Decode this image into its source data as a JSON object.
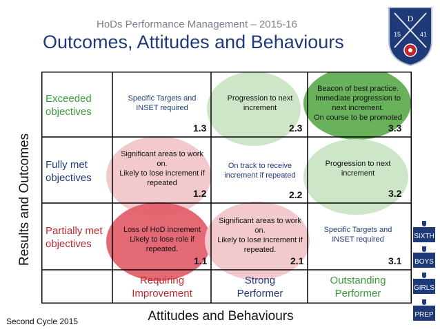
{
  "header": {
    "subtitle": "HoDs Performance Management – 2015-16",
    "title": "Outcomes, Attitudes and Behaviours"
  },
  "crest": {
    "letter": "D",
    "left_num": "15",
    "right_num": "41"
  },
  "axes": {
    "y_label": "Results and Outcomes",
    "x_label": "Attitudes and Behaviours"
  },
  "rows": [
    {
      "label_line1": "Exceeded",
      "label_line2": "objectives",
      "color": "#3a9a3a"
    },
    {
      "label_line1": "Fully met",
      "label_line2": "objectives",
      "color": "#1f3a78"
    },
    {
      "label_line1": "Partially met",
      "label_line2": "objectives",
      "color": "#c0282d"
    }
  ],
  "columns": [
    {
      "label_line1": "Requiring",
      "label_line2": "Improvement",
      "color": "#c0282d"
    },
    {
      "label_line1": "Strong",
      "label_line2": "Performer",
      "color": "#1f3a78"
    },
    {
      "label_line1": "Outstanding",
      "label_line2": "Performer",
      "color": "#3a9a3a"
    }
  ],
  "cells": {
    "c13": {
      "num": "1.3",
      "lines": [
        "Specific Targets and",
        "INSET required"
      ]
    },
    "c23": {
      "num": "2.3",
      "lines": [
        "Progression to next",
        "increment"
      ]
    },
    "c33": {
      "num": "3.3",
      "lines": [
        "Beacon of best practice.",
        "Immediate progression to",
        "next increment.",
        "On course to be promoted"
      ]
    },
    "c12": {
      "num": "1.2",
      "lines": [
        "Significant areas to work",
        "on.",
        "Likely to lose increment if",
        "repeated"
      ]
    },
    "c22": {
      "num": "2.2",
      "lines": [
        "On track to receive",
        "increment if repeated"
      ]
    },
    "c32": {
      "num": "3.2",
      "lines": [
        "Progression to next",
        "increment"
      ]
    },
    "c11": {
      "num": "1.1",
      "lines": [
        "Loss of HoD increment",
        "Likely to lose role if",
        "repeated."
      ]
    },
    "c21": {
      "num": "2.1",
      "lines": [
        "Significant areas to work",
        "on.",
        "Likely to lose increment if",
        "repeated."
      ]
    },
    "c31": {
      "num": "3.1",
      "lines": [
        "Specific Targets and",
        "INSET required"
      ]
    }
  },
  "footer": {
    "cycle": "Second Cycle 2015"
  },
  "badges": [
    "SIXTH",
    "BOYS",
    "GIRLS",
    "PREP"
  ],
  "colors": {
    "navy": "#1f3a78",
    "green": "#3a9a3a",
    "red": "#c0282d",
    "light_red": "#f2c9cc",
    "mid_red": "#e05a66",
    "light_green": "#cde6c8",
    "dark_green": "#5aa84a"
  }
}
